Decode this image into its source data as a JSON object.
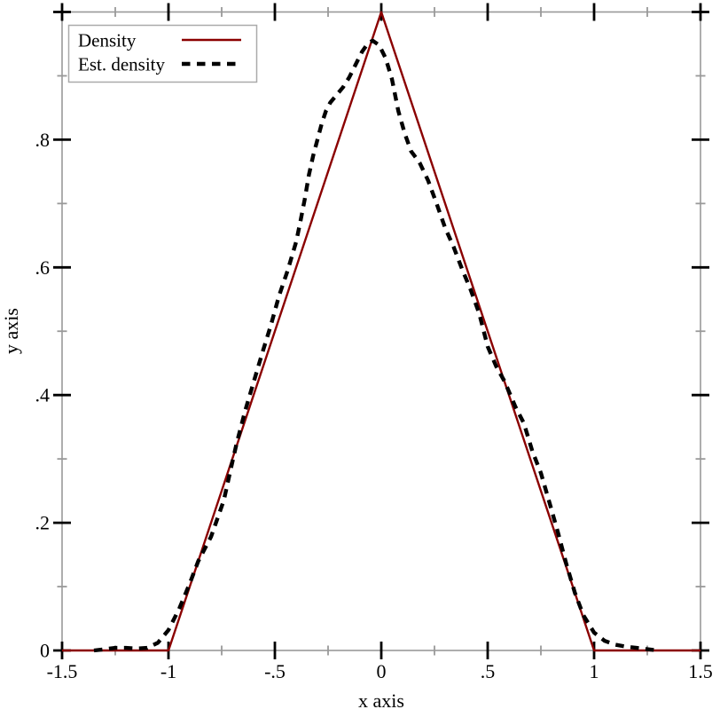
{
  "figure": {
    "background": "#ffffff",
    "frame_color": "#999999",
    "major_tick_color": "#000000",
    "minor_tick_color": "#999999",
    "text_color": "#000000"
  },
  "chart_data": {
    "type": "line",
    "title": "",
    "xlabel": "x axis",
    "ylabel": "y axis",
    "xlim": [
      -1.5,
      1.5
    ],
    "ylim": [
      0,
      1
    ],
    "grid": false,
    "legend_position": "top-left",
    "x_major_ticks": [
      -1.5,
      -1,
      -0.5,
      0,
      0.5,
      1,
      1.5
    ],
    "x_major_tick_labels": [
      "-1.5",
      "-1",
      "-.5",
      "0",
      ".5",
      "1",
      "1.5"
    ],
    "x_minor_ticks": [
      -1.25,
      -0.75,
      -0.25,
      0.25,
      0.75,
      1.25
    ],
    "y_major_ticks": [
      0,
      0.2,
      0.4,
      0.6,
      0.8,
      1
    ],
    "y_major_tick_labels": [
      "0",
      ".2",
      ".4",
      ".6",
      ".8",
      ""
    ],
    "y_minor_ticks": [
      0.1,
      0.3,
      0.5,
      0.7,
      0.9
    ],
    "series": [
      {
        "name": "Density",
        "color": "#8b0000",
        "style": "solid",
        "width": 2.4,
        "points": [
          [
            -1.5,
            0
          ],
          [
            -1,
            0
          ],
          [
            0,
            1
          ],
          [
            1,
            0
          ],
          [
            1.5,
            0
          ]
        ]
      },
      {
        "name": "Est. density",
        "color": "#000000",
        "style": "dashed",
        "width": 4.4,
        "dash": "9.5 7.5",
        "points": [
          [
            -1.35,
            0.0
          ],
          [
            -1.3,
            0.002
          ],
          [
            -1.25,
            0.004
          ],
          [
            -1.2,
            0.004
          ],
          [
            -1.15,
            0.003
          ],
          [
            -1.1,
            0.004
          ],
          [
            -1.05,
            0.012
          ],
          [
            -1.0,
            0.032
          ],
          [
            -0.95,
            0.065
          ],
          [
            -0.9,
            0.105
          ],
          [
            -0.86,
            0.14
          ],
          [
            -0.8,
            0.178
          ],
          [
            -0.74,
            0.235
          ],
          [
            -0.71,
            0.28
          ],
          [
            -0.68,
            0.324
          ],
          [
            -0.64,
            0.375
          ],
          [
            -0.6,
            0.42
          ],
          [
            -0.56,
            0.465
          ],
          [
            -0.52,
            0.508
          ],
          [
            -0.48,
            0.556
          ],
          [
            -0.44,
            0.595
          ],
          [
            -0.4,
            0.64
          ],
          [
            -0.38,
            0.672
          ],
          [
            -0.36,
            0.706
          ],
          [
            -0.34,
            0.745
          ],
          [
            -0.32,
            0.775
          ],
          [
            -0.3,
            0.8
          ],
          [
            -0.28,
            0.825
          ],
          [
            -0.26,
            0.845
          ],
          [
            -0.24,
            0.858
          ],
          [
            -0.21,
            0.87
          ],
          [
            -0.18,
            0.882
          ],
          [
            -0.15,
            0.898
          ],
          [
            -0.12,
            0.918
          ],
          [
            -0.09,
            0.938
          ],
          [
            -0.06,
            0.952
          ],
          [
            -0.04,
            0.955
          ],
          [
            -0.01,
            0.948
          ],
          [
            0.02,
            0.928
          ],
          [
            0.05,
            0.895
          ],
          [
            0.08,
            0.845
          ],
          [
            0.11,
            0.81
          ],
          [
            0.14,
            0.782
          ],
          [
            0.18,
            0.764
          ],
          [
            0.22,
            0.736
          ],
          [
            0.26,
            0.7
          ],
          [
            0.3,
            0.662
          ],
          [
            0.34,
            0.632
          ],
          [
            0.38,
            0.597
          ],
          [
            0.42,
            0.565
          ],
          [
            0.46,
            0.528
          ],
          [
            0.5,
            0.476
          ],
          [
            0.54,
            0.445
          ],
          [
            0.58,
            0.421
          ],
          [
            0.63,
            0.382
          ],
          [
            0.67,
            0.356
          ],
          [
            0.71,
            0.312
          ],
          [
            0.75,
            0.278
          ],
          [
            0.79,
            0.232
          ],
          [
            0.83,
            0.185
          ],
          [
            0.87,
            0.135
          ],
          [
            0.91,
            0.09
          ],
          [
            0.95,
            0.055
          ],
          [
            1.0,
            0.028
          ],
          [
            1.05,
            0.015
          ],
          [
            1.1,
            0.009
          ],
          [
            1.15,
            0.006
          ],
          [
            1.2,
            0.004
          ],
          [
            1.25,
            0.002
          ],
          [
            1.3,
            0.0
          ]
        ]
      }
    ]
  },
  "legend": {
    "entries": [
      "Density",
      "Est. density"
    ]
  }
}
